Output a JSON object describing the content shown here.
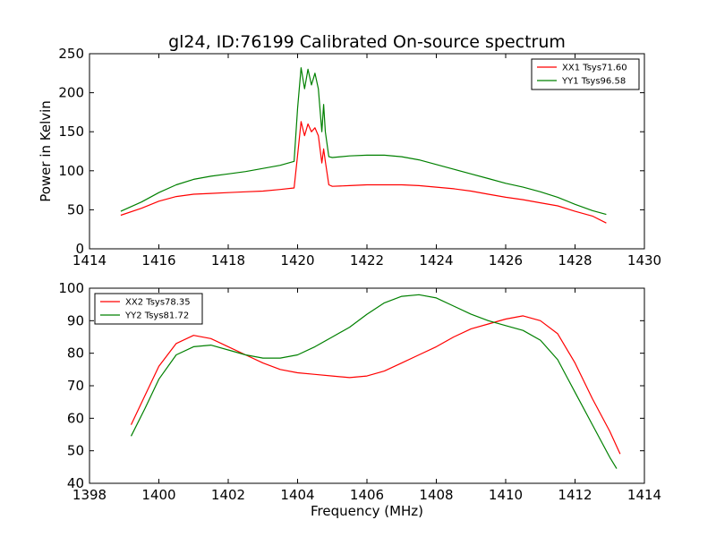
{
  "title": "gl24, ID:76199 Calibrated On-source spectrum",
  "chart_data": [
    {
      "type": "line",
      "title": "",
      "xlabel": "",
      "ylabel": "Power in Kelvin",
      "xlim": [
        1414,
        1430
      ],
      "ylim": [
        0,
        250
      ],
      "xticks": [
        1414,
        1416,
        1418,
        1420,
        1422,
        1424,
        1426,
        1428,
        1430
      ],
      "yticks": [
        0,
        50,
        100,
        150,
        200,
        250
      ],
      "grid": false,
      "legend": "top-right",
      "series": [
        {
          "name": "XX1 Tsys71.60",
          "color": "#ff0000",
          "x": [
            1414.9,
            1415.5,
            1416,
            1416.5,
            1417,
            1417.5,
            1418,
            1418.5,
            1419,
            1419.5,
            1419.9,
            1420.0,
            1420.1,
            1420.2,
            1420.3,
            1420.4,
            1420.5,
            1420.6,
            1420.7,
            1420.75,
            1420.8,
            1420.9,
            1421.0,
            1421.5,
            1422,
            1422.5,
            1423,
            1423.5,
            1424,
            1424.5,
            1425,
            1425.5,
            1426,
            1426.5,
            1427,
            1427.5,
            1428,
            1428.5,
            1428.9
          ],
          "y": [
            43,
            52,
            61,
            67,
            70,
            71,
            72,
            73,
            74,
            76,
            78,
            120,
            163,
            145,
            160,
            150,
            155,
            145,
            110,
            128,
            112,
            82,
            80,
            81,
            82,
            82,
            82,
            81,
            79,
            77,
            74,
            70,
            66,
            63,
            59,
            55,
            48,
            42,
            33
          ]
        },
        {
          "name": "YY1 Tsys96.58",
          "color": "#008000",
          "x": [
            1414.9,
            1415.5,
            1416,
            1416.5,
            1417,
            1417.5,
            1418,
            1418.5,
            1419,
            1419.5,
            1419.9,
            1420.0,
            1420.1,
            1420.2,
            1420.3,
            1420.4,
            1420.5,
            1420.6,
            1420.7,
            1420.75,
            1420.8,
            1420.9,
            1421.0,
            1421.5,
            1422,
            1422.5,
            1423,
            1423.5,
            1424,
            1424.5,
            1425,
            1425.5,
            1426,
            1426.5,
            1427,
            1427.5,
            1428,
            1428.5,
            1428.9
          ],
          "y": [
            48,
            60,
            72,
            82,
            89,
            93,
            96,
            99,
            103,
            107,
            112,
            180,
            232,
            205,
            230,
            210,
            225,
            205,
            150,
            185,
            150,
            118,
            117,
            119,
            120,
            120,
            118,
            114,
            108,
            102,
            96,
            90,
            84,
            79,
            73,
            66,
            57,
            49,
            44
          ]
        }
      ]
    },
    {
      "type": "line",
      "title": "",
      "xlabel": "Frequency (MHz)",
      "ylabel": "",
      "xlim": [
        1398,
        1414
      ],
      "ylim": [
        40,
        100
      ],
      "xticks": [
        1398,
        1400,
        1402,
        1404,
        1406,
        1408,
        1410,
        1412,
        1414
      ],
      "yticks": [
        40,
        50,
        60,
        70,
        80,
        90,
        100
      ],
      "grid": false,
      "legend": "top-left",
      "series": [
        {
          "name": "XX2 Tsys78.35",
          "color": "#ff0000",
          "x": [
            1399.2,
            1399.6,
            1400,
            1400.5,
            1401,
            1401.5,
            1402,
            1402.5,
            1403,
            1403.5,
            1404,
            1404.5,
            1405,
            1405.5,
            1406,
            1406.5,
            1407,
            1407.5,
            1408,
            1408.5,
            1409,
            1409.5,
            1410,
            1410.5,
            1411,
            1411.5,
            1412,
            1412.5,
            1413,
            1413.3
          ],
          "y": [
            58,
            67,
            76,
            83,
            85.5,
            84.5,
            82,
            79.5,
            77,
            75,
            74,
            73.5,
            73,
            72.5,
            73,
            74.5,
            77,
            79.5,
            82,
            85,
            87.5,
            89,
            90.5,
            91.5,
            90,
            86,
            77,
            66,
            56,
            49
          ]
        },
        {
          "name": "YY2 Tsys81.72",
          "color": "#008000",
          "x": [
            1399.2,
            1399.6,
            1400,
            1400.5,
            1401,
            1401.5,
            1402,
            1402.5,
            1403,
            1403.5,
            1404,
            1404.5,
            1405,
            1405.5,
            1406,
            1406.5,
            1407,
            1407.5,
            1408,
            1408.5,
            1409,
            1409.5,
            1410,
            1410.5,
            1411,
            1411.5,
            1412,
            1412.5,
            1413,
            1413.2
          ],
          "y": [
            54.5,
            63,
            72,
            79.5,
            82,
            82.5,
            81,
            79.5,
            78.5,
            78.5,
            79.5,
            82,
            85,
            88,
            92,
            95.5,
            97.5,
            98,
            97,
            94.5,
            92,
            90,
            88.5,
            87,
            84,
            78,
            68,
            58,
            48,
            44.5
          ]
        }
      ]
    }
  ]
}
